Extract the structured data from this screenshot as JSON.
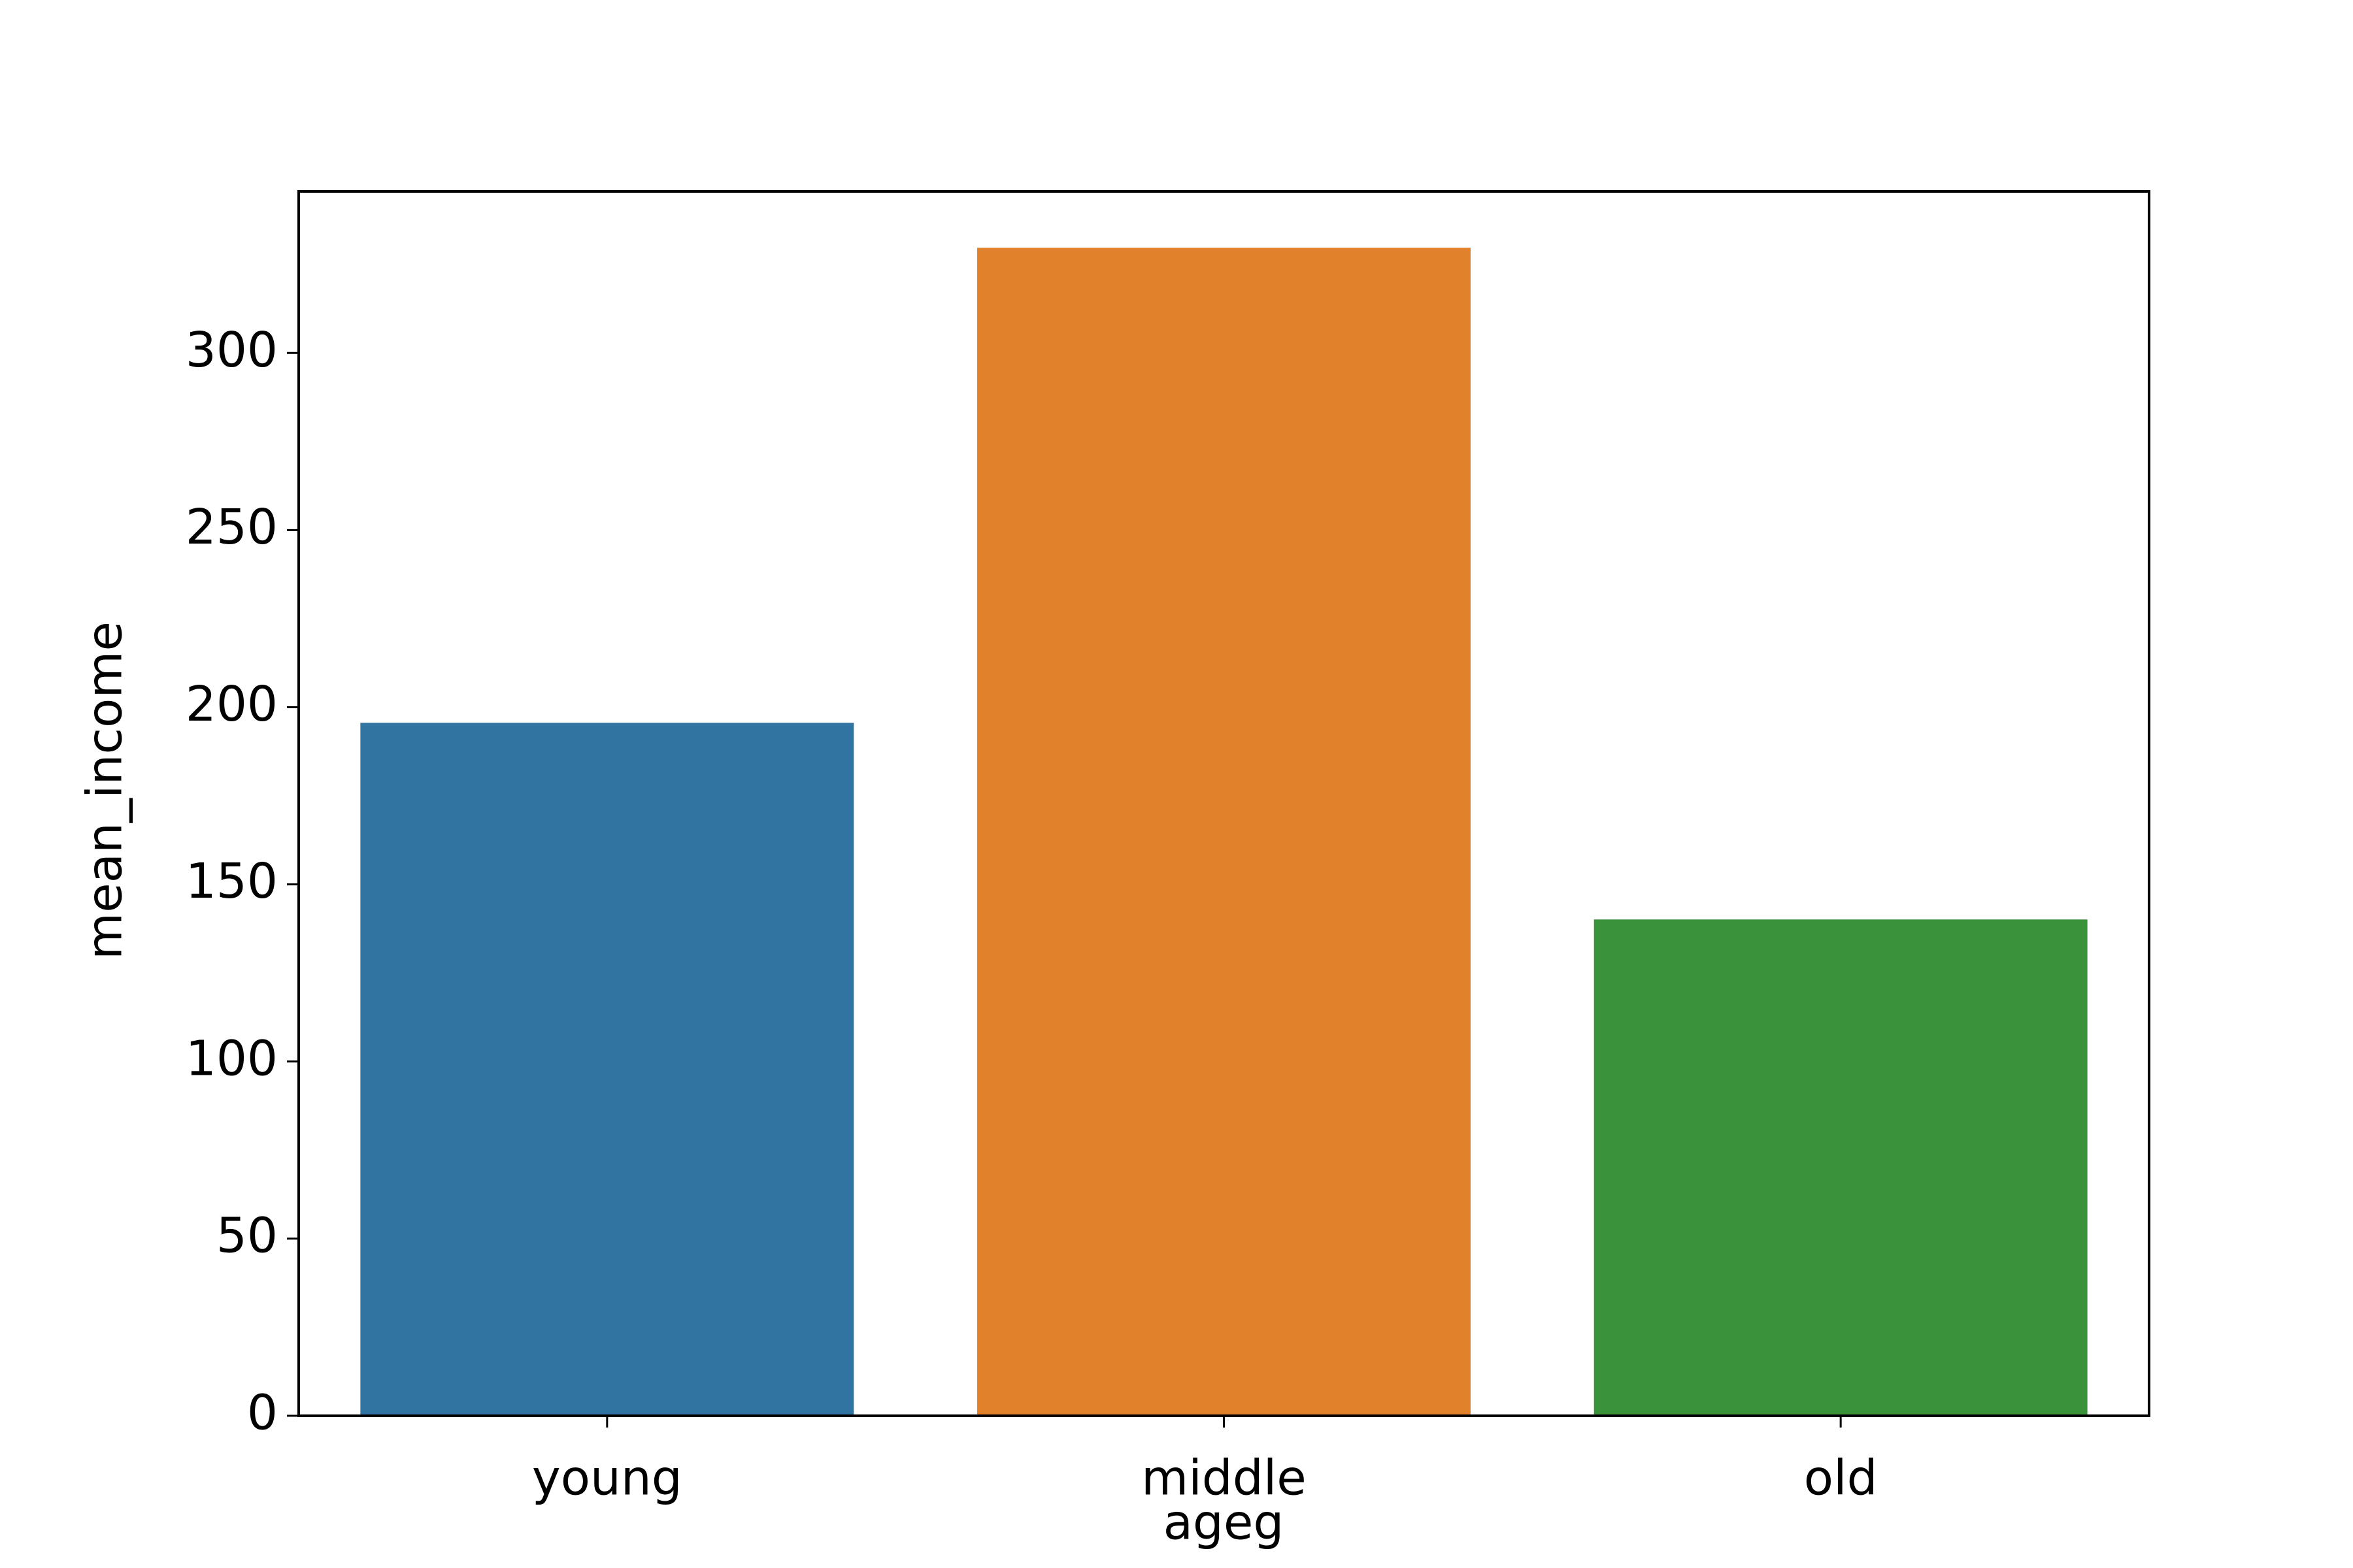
{
  "chart_data": {
    "type": "bar",
    "xlabel": "ageg",
    "ylabel": "mean_income",
    "categories": [
      "young",
      "middle",
      "old"
    ],
    "values": [
      195.6,
      329.7,
      140.1
    ],
    "colors": [
      "#3274a1",
      "#e1812c",
      "#3a923a"
    ],
    "ylim": [
      0,
      345.6
    ],
    "yticks": [
      0,
      50,
      100,
      150,
      200,
      250,
      300
    ],
    "grid": false
  }
}
